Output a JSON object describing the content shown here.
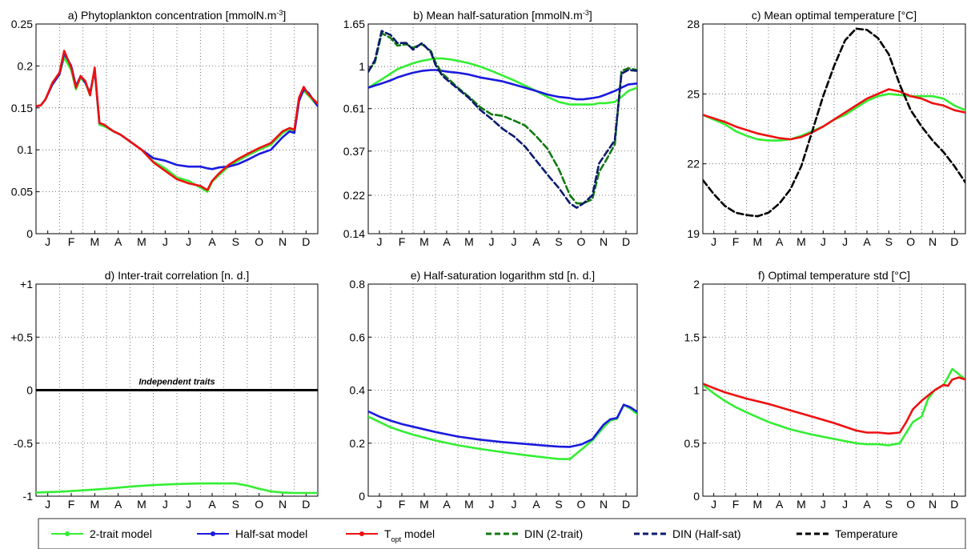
{
  "months": [
    "J",
    "F",
    "M",
    "A",
    "M",
    "J",
    "J",
    "A",
    "S",
    "O",
    "N",
    "D"
  ],
  "legend": [
    {
      "label": "2-trait model",
      "color": "#33ee33",
      "style": "solid",
      "marker": true
    },
    {
      "label": "Half-sat model",
      "color": "#1a1add",
      "style": "solid",
      "marker": true
    },
    {
      "label_main": "T",
      "label_sub": "opt",
      "label_rest": " model",
      "color": "#ee1111",
      "style": "solid",
      "marker": true
    },
    {
      "label": "DIN (2-trait)",
      "color": "#127a12",
      "style": "dashed",
      "marker": false
    },
    {
      "label": "DIN (Half-sat)",
      "color": "#0c1a6e",
      "style": "dashed",
      "marker": false
    },
    {
      "label": "Temperature",
      "color": "#000000",
      "style": "dashed",
      "marker": false
    }
  ],
  "chart_data": [
    {
      "id": "a",
      "type": "line",
      "title": "a) Phytoplankton concentration [mmolN.m",
      "title_sup": "-3",
      "title_tail": "]",
      "xlabel": "",
      "ylabel": "",
      "x": [
        0,
        0.2,
        0.4,
        0.7,
        1.0,
        1.2,
        1.5,
        1.7,
        1.9,
        2.1,
        2.3,
        2.5,
        2.7,
        2.9,
        3.0,
        3.1,
        3.3,
        3.6,
        4,
        4.5,
        5,
        5.5,
        6,
        6.5,
        7,
        7.3,
        7.5,
        7.8,
        8.2,
        8.6,
        9,
        9.5,
        10,
        10.5,
        10.8,
        11,
        11.2,
        11.4,
        11.6,
        12
      ],
      "ylim": [
        0,
        0.25
      ],
      "yticks": [
        0,
        0.05,
        0.1,
        0.15,
        0.2,
        0.25
      ],
      "ytick_labels": [
        "0",
        "0.05",
        "0.1",
        "0.15",
        "0.2",
        "0.25"
      ],
      "series": [
        {
          "color": "#33ee33",
          "values": [
            0.152,
            0.153,
            0.16,
            0.178,
            0.19,
            0.21,
            0.195,
            0.172,
            0.186,
            0.18,
            0.165,
            0.195,
            0.13,
            0.128,
            0.127,
            0.125,
            0.122,
            0.118,
            0.11,
            0.1,
            0.086,
            0.078,
            0.067,
            0.063,
            0.055,
            0.05,
            0.062,
            0.07,
            0.08,
            0.087,
            0.093,
            0.1,
            0.106,
            0.12,
            0.125,
            0.122,
            0.16,
            0.17,
            0.165,
            0.152
          ]
        },
        {
          "color": "#1a1add",
          "values": [
            0.152,
            0.153,
            0.16,
            0.178,
            0.19,
            0.215,
            0.2,
            0.176,
            0.188,
            0.18,
            0.168,
            0.195,
            0.132,
            0.13,
            0.128,
            0.126,
            0.122,
            0.118,
            0.11,
            0.1,
            0.09,
            0.087,
            0.082,
            0.08,
            0.08,
            0.078,
            0.077,
            0.079,
            0.08,
            0.083,
            0.088,
            0.095,
            0.1,
            0.115,
            0.122,
            0.12,
            0.158,
            0.172,
            0.168,
            0.152
          ]
        },
        {
          "color": "#ee1111",
          "values": [
            0.152,
            0.153,
            0.16,
            0.18,
            0.192,
            0.218,
            0.198,
            0.174,
            0.188,
            0.182,
            0.165,
            0.198,
            0.132,
            0.13,
            0.128,
            0.126,
            0.122,
            0.118,
            0.11,
            0.1,
            0.085,
            0.075,
            0.065,
            0.06,
            0.057,
            0.052,
            0.063,
            0.072,
            0.082,
            0.089,
            0.095,
            0.102,
            0.108,
            0.122,
            0.126,
            0.124,
            0.162,
            0.175,
            0.166,
            0.155
          ]
        }
      ]
    },
    {
      "id": "b",
      "type": "line",
      "title": "b) Mean half-saturation [mmolN.m",
      "title_sup": "-3",
      "title_tail": "]",
      "xlabel": "",
      "ylabel": "",
      "x": [
        0,
        0.3,
        0.6,
        1.0,
        1.3,
        1.7,
        2.0,
        2.4,
        2.8,
        3.0,
        3.3,
        3.6,
        4,
        4.5,
        5,
        5.5,
        6,
        6.5,
        7,
        7.5,
        8,
        8.5,
        9,
        9.3,
        9.6,
        10,
        10.3,
        10.6,
        11,
        11.3,
        11.6,
        12
      ],
      "ylim": [
        0.14,
        1.65
      ],
      "scale": "log",
      "yticks": [
        0.14,
        0.22,
        0.37,
        0.61,
        1,
        1.65
      ],
      "ytick_labels": [
        "0.14",
        "0.22",
        "0.37",
        "0.61",
        "1",
        "1.65"
      ],
      "series": [
        {
          "color": "#33ee33",
          "values": [
            0.78,
            0.82,
            0.86,
            0.92,
            0.97,
            1.01,
            1.04,
            1.07,
            1.09,
            1.1,
            1.1,
            1.09,
            1.07,
            1.04,
            1.0,
            0.95,
            0.9,
            0.85,
            0.8,
            0.75,
            0.7,
            0.66,
            0.64,
            0.64,
            0.64,
            0.64,
            0.65,
            0.65,
            0.66,
            0.7,
            0.75,
            0.78
          ]
        },
        {
          "color": "#1a1add",
          "values": [
            0.78,
            0.8,
            0.82,
            0.85,
            0.88,
            0.91,
            0.93,
            0.95,
            0.96,
            0.96,
            0.95,
            0.94,
            0.93,
            0.91,
            0.88,
            0.86,
            0.84,
            0.81,
            0.78,
            0.75,
            0.72,
            0.7,
            0.69,
            0.68,
            0.68,
            0.69,
            0.7,
            0.72,
            0.75,
            0.78,
            0.81,
            0.82
          ]
        },
        {
          "color": "#127a12",
          "dashed": true,
          "values": [
            0.95,
            1.05,
            1.48,
            1.4,
            1.28,
            1.3,
            1.25,
            1.3,
            1.2,
            1.05,
            0.92,
            0.86,
            0.78,
            0.7,
            0.62,
            0.57,
            0.56,
            0.53,
            0.5,
            0.44,
            0.38,
            0.3,
            0.22,
            0.2,
            0.2,
            0.21,
            0.29,
            0.33,
            0.4,
            0.95,
            0.98,
            0.96
          ]
        },
        {
          "color": "#0c1a6e",
          "dashed": true,
          "values": [
            0.94,
            1.08,
            1.52,
            1.45,
            1.32,
            1.32,
            1.22,
            1.32,
            1.18,
            1.02,
            0.9,
            0.84,
            0.77,
            0.69,
            0.6,
            0.54,
            0.48,
            0.44,
            0.39,
            0.33,
            0.28,
            0.24,
            0.2,
            0.19,
            0.2,
            0.22,
            0.32,
            0.36,
            0.42,
            0.92,
            0.96,
            0.95
          ]
        }
      ]
    },
    {
      "id": "c",
      "type": "line",
      "title": "c) Mean optimal temperature [°C]",
      "xlabel": "",
      "ylabel": "",
      "x": [
        0,
        0.5,
        1,
        1.5,
        2,
        2.5,
        3,
        3.5,
        4,
        4.5,
        5,
        5.5,
        6,
        6.5,
        7,
        7.5,
        8,
        8.5,
        9,
        9.5,
        10,
        10.5,
        11,
        11.5,
        12
      ],
      "ylim": [
        19,
        28
      ],
      "yticks": [
        19,
        22,
        25,
        28
      ],
      "ytick_labels": [
        "19",
        "22",
        "25",
        "28"
      ],
      "series": [
        {
          "color": "#33ee33",
          "values": [
            24.1,
            23.9,
            23.7,
            23.4,
            23.2,
            23.05,
            23.0,
            23.0,
            23.05,
            23.2,
            23.4,
            23.6,
            23.9,
            24.1,
            24.4,
            24.7,
            24.9,
            25.0,
            24.95,
            24.9,
            24.9,
            24.9,
            24.8,
            24.5,
            24.3
          ]
        },
        {
          "color": "#ee1111",
          "values": [
            24.1,
            23.95,
            23.8,
            23.6,
            23.45,
            23.3,
            23.2,
            23.1,
            23.05,
            23.15,
            23.35,
            23.6,
            23.9,
            24.2,
            24.5,
            24.8,
            25.0,
            25.2,
            25.1,
            24.9,
            24.8,
            24.6,
            24.5,
            24.3,
            24.2
          ]
        },
        {
          "color": "#000000",
          "dashed": true,
          "values": [
            21.3,
            20.7,
            20.2,
            19.9,
            19.8,
            19.75,
            19.9,
            20.3,
            20.9,
            21.9,
            23.4,
            24.9,
            26.2,
            27.3,
            27.8,
            27.75,
            27.4,
            26.7,
            25.4,
            24.3,
            23.6,
            23.0,
            22.5,
            21.9,
            21.2
          ]
        }
      ]
    },
    {
      "id": "d",
      "type": "line",
      "title": "d) Inter-trait correlation [n. d.]",
      "xlabel": "",
      "ylabel": "",
      "x": [
        0,
        1,
        2,
        3,
        4,
        5,
        6,
        7,
        8,
        8.5,
        9,
        9.5,
        10,
        10.5,
        11,
        12
      ],
      "ylim": [
        -1,
        1
      ],
      "yticks": [
        -1,
        -0.5,
        0,
        0.5,
        1
      ],
      "ytick_labels": [
        "-1",
        "-0.5",
        "0",
        "+0.5",
        "+1"
      ],
      "annotation": "Independent traits",
      "series": [
        {
          "color": "#000000",
          "values": [
            0,
            0,
            0,
            0,
            0,
            0,
            0,
            0,
            0,
            0,
            0,
            0,
            0,
            0,
            0,
            0
          ]
        },
        {
          "color": "#33ee33",
          "values": [
            -0.965,
            -0.958,
            -0.945,
            -0.93,
            -0.91,
            -0.895,
            -0.885,
            -0.88,
            -0.88,
            -0.88,
            -0.9,
            -0.93,
            -0.955,
            -0.965,
            -0.97,
            -0.97
          ]
        }
      ]
    },
    {
      "id": "e",
      "type": "line",
      "title": "e) Half-saturation logarithm std [n. d.]",
      "xlabel": "",
      "ylabel": "",
      "x": [
        0,
        0.5,
        1,
        1.5,
        2,
        3,
        4,
        5,
        6,
        7,
        8,
        8.5,
        9,
        9.5,
        10,
        10.5,
        10.8,
        11.1,
        11.4,
        11.7,
        12
      ],
      "ylim": [
        0,
        0.8
      ],
      "yticks": [
        0,
        0.2,
        0.4,
        0.6,
        0.8
      ],
      "ytick_labels": [
        "0",
        "0.2",
        "0.4",
        "0.6",
        "0.8"
      ],
      "series": [
        {
          "color": "#33ee33",
          "values": [
            0.3,
            0.28,
            0.26,
            0.245,
            0.232,
            0.21,
            0.192,
            0.178,
            0.166,
            0.155,
            0.145,
            0.14,
            0.14,
            0.175,
            0.21,
            0.26,
            0.285,
            0.292,
            0.345,
            0.33,
            0.31
          ]
        },
        {
          "color": "#1a1add",
          "values": [
            0.32,
            0.3,
            0.285,
            0.272,
            0.262,
            0.242,
            0.225,
            0.213,
            0.204,
            0.197,
            0.19,
            0.187,
            0.186,
            0.195,
            0.215,
            0.27,
            0.29,
            0.295,
            0.345,
            0.335,
            0.318
          ]
        }
      ]
    },
    {
      "id": "f",
      "type": "line",
      "title": "f) Optimal temperature std [°C]",
      "xlabel": "",
      "ylabel": "",
      "x": [
        0,
        0.5,
        1,
        1.5,
        2,
        3,
        4,
        5,
        6,
        7,
        7.5,
        8,
        8.5,
        9,
        9.3,
        9.6,
        10,
        10.3,
        10.6,
        11,
        11.2,
        11.4,
        11.7,
        12
      ],
      "ylim": [
        0,
        2
      ],
      "yticks": [
        0,
        0.5,
        1,
        1.5,
        2
      ],
      "ytick_labels": [
        "0",
        "0.5",
        "1",
        "1.5",
        "2"
      ],
      "series": [
        {
          "color": "#33ee33",
          "values": [
            1.05,
            0.97,
            0.9,
            0.84,
            0.79,
            0.7,
            0.63,
            0.58,
            0.54,
            0.5,
            0.49,
            0.49,
            0.48,
            0.5,
            0.6,
            0.7,
            0.75,
            0.92,
            1.0,
            1.05,
            1.12,
            1.2,
            1.15,
            1.1
          ]
        },
        {
          "color": "#ee1111",
          "values": [
            1.06,
            1.02,
            0.98,
            0.95,
            0.92,
            0.87,
            0.81,
            0.75,
            0.69,
            0.62,
            0.6,
            0.6,
            0.59,
            0.6,
            0.7,
            0.82,
            0.9,
            0.95,
            1.0,
            1.05,
            1.04,
            1.1,
            1.12,
            1.1
          ]
        }
      ]
    }
  ]
}
